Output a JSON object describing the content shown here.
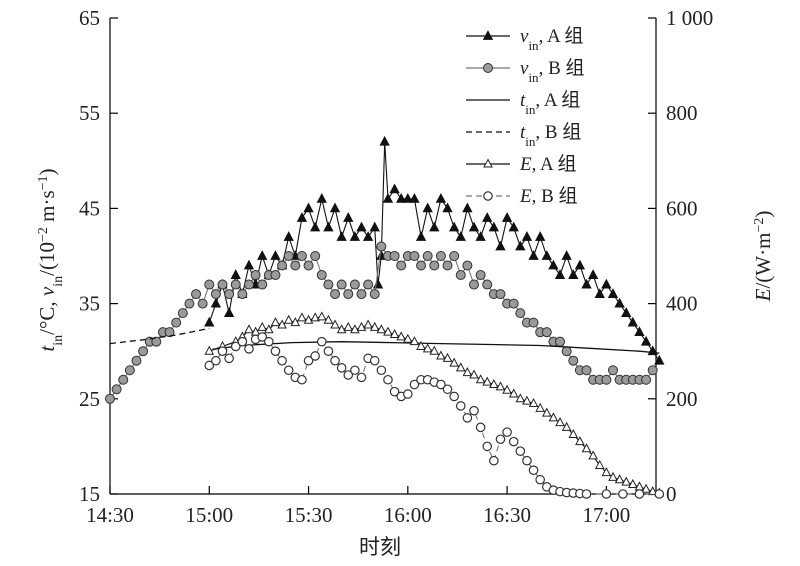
{
  "chart_data": {
    "type": "line",
    "xlabel": "时刻",
    "ylabel_left": "t_in/°C, v_in/(10^-2 m·s^-1)",
    "ylabel_right": "E/(W·m^-2)",
    "x_ticks": [
      "14:30",
      "15:00",
      "15:30",
      "16:00",
      "16:30",
      "17:00"
    ],
    "x_range_minutes": [
      0,
      165
    ],
    "y_left_range": [
      15,
      65
    ],
    "y_left_ticks": [
      "15",
      "25",
      "35",
      "45",
      "55",
      "65"
    ],
    "y_right_range": [
      0,
      1000
    ],
    "y_right_ticks": [
      "0",
      "200",
      "400",
      "600",
      "800",
      "1 000"
    ],
    "legend": {
      "placement": "top-right",
      "items": [
        {
          "sym": "v",
          "sub": "in",
          "group": ", A 组"
        },
        {
          "sym": "v",
          "sub": "in",
          "group": ", B 组"
        },
        {
          "sym": "t",
          "sub": "in",
          "group": ", A 组"
        },
        {
          "sym": "t",
          "sub": "in",
          "group": ", B 组"
        },
        {
          "sym": "E",
          "sub": "",
          "group": ", A 组"
        },
        {
          "sym": "E",
          "sub": "",
          "group": ", B 组"
        }
      ]
    },
    "series": [
      {
        "key": "vA",
        "axis": "left",
        "marker": "filled-triangle",
        "dash": "",
        "points": [
          [
            30,
            33
          ],
          [
            32,
            35
          ],
          [
            34,
            37
          ],
          [
            36,
            34
          ],
          [
            38,
            38
          ],
          [
            40,
            36
          ],
          [
            42,
            39
          ],
          [
            44,
            37
          ],
          [
            46,
            40
          ],
          [
            48,
            38
          ],
          [
            50,
            40
          ],
          [
            52,
            39
          ],
          [
            54,
            42
          ],
          [
            56,
            40
          ],
          [
            58,
            44
          ],
          [
            60,
            45
          ],
          [
            62,
            43
          ],
          [
            64,
            46
          ],
          [
            66,
            43
          ],
          [
            68,
            45
          ],
          [
            70,
            42
          ],
          [
            72,
            44
          ],
          [
            74,
            42
          ],
          [
            76,
            43
          ],
          [
            78,
            42
          ],
          [
            80,
            43
          ],
          [
            81,
            37
          ],
          [
            82,
            40
          ],
          [
            83,
            52
          ],
          [
            84,
            46
          ],
          [
            86,
            47
          ],
          [
            88,
            46
          ],
          [
            90,
            46
          ],
          [
            92,
            46
          ],
          [
            94,
            42
          ],
          [
            96,
            45
          ],
          [
            98,
            43
          ],
          [
            100,
            46
          ],
          [
            102,
            45
          ],
          [
            104,
            43
          ],
          [
            106,
            42
          ],
          [
            108,
            45
          ],
          [
            110,
            43
          ],
          [
            112,
            42
          ],
          [
            114,
            44
          ],
          [
            116,
            43
          ],
          [
            118,
            41
          ],
          [
            120,
            44
          ],
          [
            122,
            43
          ],
          [
            124,
            41
          ],
          [
            126,
            42
          ],
          [
            128,
            40
          ],
          [
            130,
            42
          ],
          [
            132,
            40
          ],
          [
            134,
            39
          ],
          [
            136,
            38
          ],
          [
            138,
            40
          ],
          [
            140,
            38
          ],
          [
            142,
            39
          ],
          [
            144,
            37
          ],
          [
            146,
            38
          ],
          [
            148,
            36
          ],
          [
            150,
            37
          ],
          [
            152,
            36
          ],
          [
            154,
            35
          ],
          [
            156,
            34
          ],
          [
            158,
            33
          ],
          [
            160,
            32
          ],
          [
            162,
            31
          ],
          [
            164,
            30
          ],
          [
            166,
            29
          ]
        ]
      },
      {
        "key": "vB",
        "axis": "left",
        "marker": "filled-circle",
        "dash": "",
        "points": [
          [
            0,
            25
          ],
          [
            2,
            26
          ],
          [
            4,
            27
          ],
          [
            6,
            28
          ],
          [
            8,
            29
          ],
          [
            10,
            30
          ],
          [
            12,
            31
          ],
          [
            14,
            31
          ],
          [
            16,
            32
          ],
          [
            18,
            32
          ],
          [
            20,
            33
          ],
          [
            22,
            34
          ],
          [
            24,
            35
          ],
          [
            26,
            36
          ],
          [
            28,
            35
          ],
          [
            30,
            37
          ],
          [
            32,
            36
          ],
          [
            34,
            37
          ],
          [
            36,
            36
          ],
          [
            38,
            37
          ],
          [
            40,
            36
          ],
          [
            42,
            37
          ],
          [
            44,
            38
          ],
          [
            46,
            37
          ],
          [
            48,
            38
          ],
          [
            50,
            38
          ],
          [
            52,
            39
          ],
          [
            54,
            40
          ],
          [
            56,
            39
          ],
          [
            58,
            40
          ],
          [
            60,
            39
          ],
          [
            62,
            40
          ],
          [
            64,
            38
          ],
          [
            66,
            37
          ],
          [
            68,
            36
          ],
          [
            70,
            37
          ],
          [
            72,
            36
          ],
          [
            74,
            37
          ],
          [
            76,
            36
          ],
          [
            78,
            37
          ],
          [
            80,
            36
          ],
          [
            82,
            41
          ],
          [
            84,
            40
          ],
          [
            86,
            40
          ],
          [
            88,
            39
          ],
          [
            90,
            40
          ],
          [
            92,
            40
          ],
          [
            94,
            39
          ],
          [
            96,
            40
          ],
          [
            98,
            39
          ],
          [
            100,
            40
          ],
          [
            102,
            39
          ],
          [
            104,
            40
          ],
          [
            106,
            38
          ],
          [
            108,
            39
          ],
          [
            110,
            37
          ],
          [
            112,
            38
          ],
          [
            114,
            37
          ],
          [
            116,
            36
          ],
          [
            118,
            36
          ],
          [
            120,
            35
          ],
          [
            122,
            35
          ],
          [
            124,
            34
          ],
          [
            126,
            33
          ],
          [
            128,
            33
          ],
          [
            130,
            32
          ],
          [
            132,
            32
          ],
          [
            134,
            31
          ],
          [
            136,
            31
          ],
          [
            138,
            30
          ],
          [
            140,
            29
          ],
          [
            142,
            28
          ],
          [
            144,
            28
          ],
          [
            146,
            27
          ],
          [
            148,
            27
          ],
          [
            150,
            27
          ],
          [
            152,
            28
          ],
          [
            154,
            27
          ],
          [
            156,
            27
          ],
          [
            158,
            27
          ],
          [
            160,
            27
          ],
          [
            162,
            27
          ],
          [
            164,
            28
          ]
        ]
      },
      {
        "key": "tA",
        "axis": "left",
        "marker": "none",
        "dash": "",
        "points": [
          [
            31,
            30.2
          ],
          [
            40,
            30.6
          ],
          [
            55,
            30.9
          ],
          [
            70,
            31.0
          ],
          [
            85,
            30.9
          ],
          [
            100,
            30.8
          ],
          [
            115,
            30.7
          ],
          [
            130,
            30.6
          ],
          [
            145,
            30.3
          ],
          [
            160,
            30.0
          ],
          [
            166,
            29.8
          ]
        ]
      },
      {
        "key": "tB",
        "axis": "left",
        "marker": "none",
        "dash": "6 4",
        "points": [
          [
            0,
            30.8
          ],
          [
            10,
            31.2
          ],
          [
            20,
            31.7
          ],
          [
            30,
            32.4
          ]
        ]
      },
      {
        "key": "EA",
        "axis": "right",
        "marker": "open-triangle",
        "dash": "",
        "points": [
          [
            30,
            300
          ],
          [
            34,
            310
          ],
          [
            38,
            320
          ],
          [
            40,
            330
          ],
          [
            42,
            345
          ],
          [
            44,
            340
          ],
          [
            46,
            350
          ],
          [
            48,
            345
          ],
          [
            50,
            360
          ],
          [
            52,
            355
          ],
          [
            54,
            365
          ],
          [
            56,
            360
          ],
          [
            58,
            370
          ],
          [
            60,
            365
          ],
          [
            62,
            370
          ],
          [
            64,
            372
          ],
          [
            66,
            365
          ],
          [
            68,
            355
          ],
          [
            70,
            345
          ],
          [
            72,
            350
          ],
          [
            74,
            345
          ],
          [
            76,
            350
          ],
          [
            78,
            355
          ],
          [
            80,
            350
          ],
          [
            82,
            345
          ],
          [
            84,
            340
          ],
          [
            86,
            335
          ],
          [
            88,
            330
          ],
          [
            90,
            325
          ],
          [
            92,
            320
          ],
          [
            94,
            310
          ],
          [
            96,
            305
          ],
          [
            98,
            300
          ],
          [
            100,
            290
          ],
          [
            102,
            285
          ],
          [
            104,
            275
          ],
          [
            106,
            265
          ],
          [
            108,
            255
          ],
          [
            110,
            250
          ],
          [
            112,
            240
          ],
          [
            114,
            235
          ],
          [
            116,
            230
          ],
          [
            118,
            225
          ],
          [
            120,
            218
          ],
          [
            122,
            210
          ],
          [
            124,
            200
          ],
          [
            126,
            195
          ],
          [
            128,
            190
          ],
          [
            130,
            180
          ],
          [
            132,
            170
          ],
          [
            134,
            160
          ],
          [
            136,
            150
          ],
          [
            138,
            140
          ],
          [
            140,
            125
          ],
          [
            142,
            110
          ],
          [
            144,
            95
          ],
          [
            146,
            80
          ],
          [
            148,
            60
          ],
          [
            150,
            45
          ],
          [
            152,
            35
          ],
          [
            154,
            30
          ],
          [
            156,
            25
          ],
          [
            158,
            20
          ],
          [
            160,
            15
          ],
          [
            162,
            10
          ],
          [
            164,
            5
          ],
          [
            166,
            2
          ]
        ]
      },
      {
        "key": "EB",
        "axis": "right",
        "marker": "open-circle",
        "dash": "6 4",
        "points": [
          [
            30,
            270
          ],
          [
            32,
            280
          ],
          [
            34,
            300
          ],
          [
            36,
            285
          ],
          [
            38,
            310
          ],
          [
            40,
            320
          ],
          [
            42,
            305
          ],
          [
            44,
            325
          ],
          [
            46,
            330
          ],
          [
            48,
            320
          ],
          [
            50,
            300
          ],
          [
            52,
            280
          ],
          [
            54,
            260
          ],
          [
            56,
            245
          ],
          [
            58,
            240
          ],
          [
            60,
            280
          ],
          [
            62,
            290
          ],
          [
            64,
            320
          ],
          [
            66,
            300
          ],
          [
            68,
            280
          ],
          [
            70,
            265
          ],
          [
            72,
            250
          ],
          [
            74,
            260
          ],
          [
            76,
            245
          ],
          [
            78,
            285
          ],
          [
            80,
            280
          ],
          [
            82,
            260
          ],
          [
            84,
            240
          ],
          [
            86,
            215
          ],
          [
            88,
            205
          ],
          [
            90,
            210
          ],
          [
            92,
            230
          ],
          [
            94,
            240
          ],
          [
            96,
            240
          ],
          [
            98,
            235
          ],
          [
            100,
            230
          ],
          [
            102,
            220
          ],
          [
            104,
            205
          ],
          [
            106,
            185
          ],
          [
            108,
            160
          ],
          [
            110,
            175
          ],
          [
            112,
            140
          ],
          [
            114,
            100
          ],
          [
            116,
            70
          ],
          [
            118,
            115
          ],
          [
            120,
            130
          ],
          [
            122,
            110
          ],
          [
            124,
            90
          ],
          [
            126,
            70
          ],
          [
            128,
            50
          ],
          [
            130,
            30
          ],
          [
            132,
            15
          ],
          [
            134,
            8
          ],
          [
            136,
            5
          ],
          [
            138,
            3
          ],
          [
            140,
            2
          ],
          [
            142,
            1
          ],
          [
            144,
            0
          ],
          [
            150,
            0
          ],
          [
            155,
            0
          ],
          [
            160,
            0
          ],
          [
            166,
            0
          ]
        ]
      }
    ]
  }
}
